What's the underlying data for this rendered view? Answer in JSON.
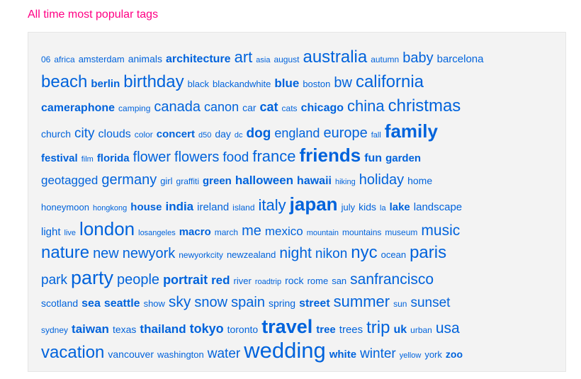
{
  "title": "All time most popular tags",
  "colors": {
    "title": "#ff0084",
    "tag": "#0063dc",
    "panel": "#f3f3f3"
  },
  "lines": [
    [
      [
        "06",
        12
      ],
      [
        "africa",
        12
      ],
      [
        "amsterdam",
        13
      ],
      [
        "animals",
        14
      ],
      [
        "architecture",
        16,
        true
      ],
      [
        "art",
        22
      ],
      [
        "asia",
        11
      ],
      [
        "august",
        12
      ],
      [
        "australia",
        24
      ],
      [
        "autumn",
        12
      ],
      [
        "baby",
        20
      ],
      [
        "barcelona",
        15
      ]
    ],
    [
      [
        "beach",
        24
      ],
      [
        "berlin",
        15,
        true
      ],
      [
        "birthday",
        24
      ],
      [
        "black",
        13
      ],
      [
        "blackandwhite",
        13
      ],
      [
        "blue",
        17,
        true
      ],
      [
        "boston",
        13
      ],
      [
        "bw",
        20
      ],
      [
        "california",
        24
      ]
    ],
    [
      [
        "cameraphone",
        16,
        true
      ],
      [
        "camping",
        12
      ],
      [
        "canada",
        20
      ],
      [
        "canon",
        18
      ],
      [
        "car",
        14
      ],
      [
        "cat",
        18,
        true
      ],
      [
        "cats",
        12
      ],
      [
        "chicago",
        16,
        true
      ],
      [
        "china",
        22
      ],
      [
        "christmas",
        24
      ]
    ],
    [
      [
        "church",
        14
      ],
      [
        "city",
        19
      ],
      [
        "clouds",
        16
      ],
      [
        "color",
        12
      ],
      [
        "concert",
        15,
        true
      ],
      [
        "d50",
        11
      ],
      [
        "day",
        14
      ],
      [
        "dc",
        11
      ],
      [
        "dog",
        19,
        true
      ],
      [
        "england",
        18
      ],
      [
        "europe",
        20
      ],
      [
        "fall",
        11
      ],
      [
        "family",
        26,
        true
      ]
    ],
    [
      [
        "festival",
        15,
        true
      ],
      [
        "film",
        11
      ],
      [
        "florida",
        15,
        true
      ],
      [
        "flower",
        20
      ],
      [
        "flowers",
        20
      ],
      [
        "food",
        19
      ],
      [
        "france",
        22
      ],
      [
        "friends",
        26,
        true
      ],
      [
        "fun",
        16,
        true
      ],
      [
        "garden",
        15,
        true
      ]
    ],
    [
      [
        "geotagged",
        17
      ],
      [
        "germany",
        20
      ],
      [
        "girl",
        13
      ],
      [
        "graffiti",
        12
      ],
      [
        "green",
        15,
        true
      ],
      [
        "halloween",
        17,
        true
      ],
      [
        "hawaii",
        16,
        true
      ],
      [
        "hiking",
        11
      ],
      [
        "holiday",
        20
      ],
      [
        "home",
        14
      ]
    ],
    [
      [
        "honeymoon",
        13
      ],
      [
        "hongkong",
        11
      ],
      [
        "house",
        15,
        true
      ],
      [
        "india",
        17,
        true
      ],
      [
        "ireland",
        15
      ],
      [
        "island",
        12
      ],
      [
        "italy",
        22
      ],
      [
        "japan",
        26,
        true
      ],
      [
        "july",
        13
      ],
      [
        "kids",
        14
      ],
      [
        "la",
        11
      ],
      [
        "lake",
        15,
        true
      ],
      [
        "landscape",
        15
      ]
    ],
    [
      [
        "light",
        15
      ],
      [
        "live",
        11
      ],
      [
        "london",
        26
      ],
      [
        "losangeles",
        11
      ],
      [
        "macro",
        15,
        true
      ],
      [
        "march",
        12
      ],
      [
        "me",
        20
      ],
      [
        "mexico",
        17
      ],
      [
        "mountain",
        11
      ],
      [
        "mountains",
        12
      ],
      [
        "museum",
        12
      ],
      [
        "music",
        21
      ]
    ],
    [
      [
        "nature",
        24
      ],
      [
        "new",
        20
      ],
      [
        "newyork",
        20
      ],
      [
        "newyorkcity",
        12
      ],
      [
        "newzealand",
        13
      ],
      [
        "night",
        21
      ],
      [
        "nikon",
        19
      ],
      [
        "nyc",
        24
      ],
      [
        "ocean",
        13
      ],
      [
        "paris",
        24
      ]
    ],
    [
      [
        "park",
        19
      ],
      [
        "party",
        27
      ],
      [
        "people",
        20
      ],
      [
        "portrait",
        18,
        true
      ],
      [
        "red",
        17,
        true
      ],
      [
        "river",
        13
      ],
      [
        "roadtrip",
        11
      ],
      [
        "rock",
        14
      ],
      [
        "rome",
        13
      ],
      [
        "san",
        13
      ],
      [
        "sanfrancisco",
        21
      ]
    ],
    [
      [
        "scotland",
        14
      ],
      [
        "sea",
        16,
        true
      ],
      [
        "seattle",
        16,
        true
      ],
      [
        "show",
        13
      ],
      [
        "sky",
        21
      ],
      [
        "snow",
        20
      ],
      [
        "spain",
        20
      ],
      [
        "spring",
        14
      ],
      [
        "street",
        16,
        true
      ],
      [
        "summer",
        22
      ],
      [
        "sun",
        12
      ],
      [
        "sunset",
        19
      ]
    ],
    [
      [
        "sydney",
        12
      ],
      [
        "taiwan",
        17,
        true
      ],
      [
        "texas",
        14
      ],
      [
        "thailand",
        17,
        true
      ],
      [
        "tokyo",
        18,
        true
      ],
      [
        "toronto",
        14
      ],
      [
        "travel",
        27,
        true
      ],
      [
        "tree",
        15,
        true
      ],
      [
        "trees",
        15
      ],
      [
        "trip",
        24
      ],
      [
        "uk",
        16,
        true
      ],
      [
        "urban",
        12
      ],
      [
        "usa",
        21
      ]
    ],
    [
      [
        "vacation",
        24
      ],
      [
        "vancouver",
        14
      ],
      [
        "washington",
        13
      ],
      [
        "water",
        19
      ],
      [
        "wedding",
        31
      ],
      [
        "white",
        15,
        true
      ],
      [
        "winter",
        19
      ],
      [
        "yellow",
        11
      ],
      [
        "york",
        13
      ],
      [
        "zoo",
        14,
        true
      ]
    ]
  ]
}
